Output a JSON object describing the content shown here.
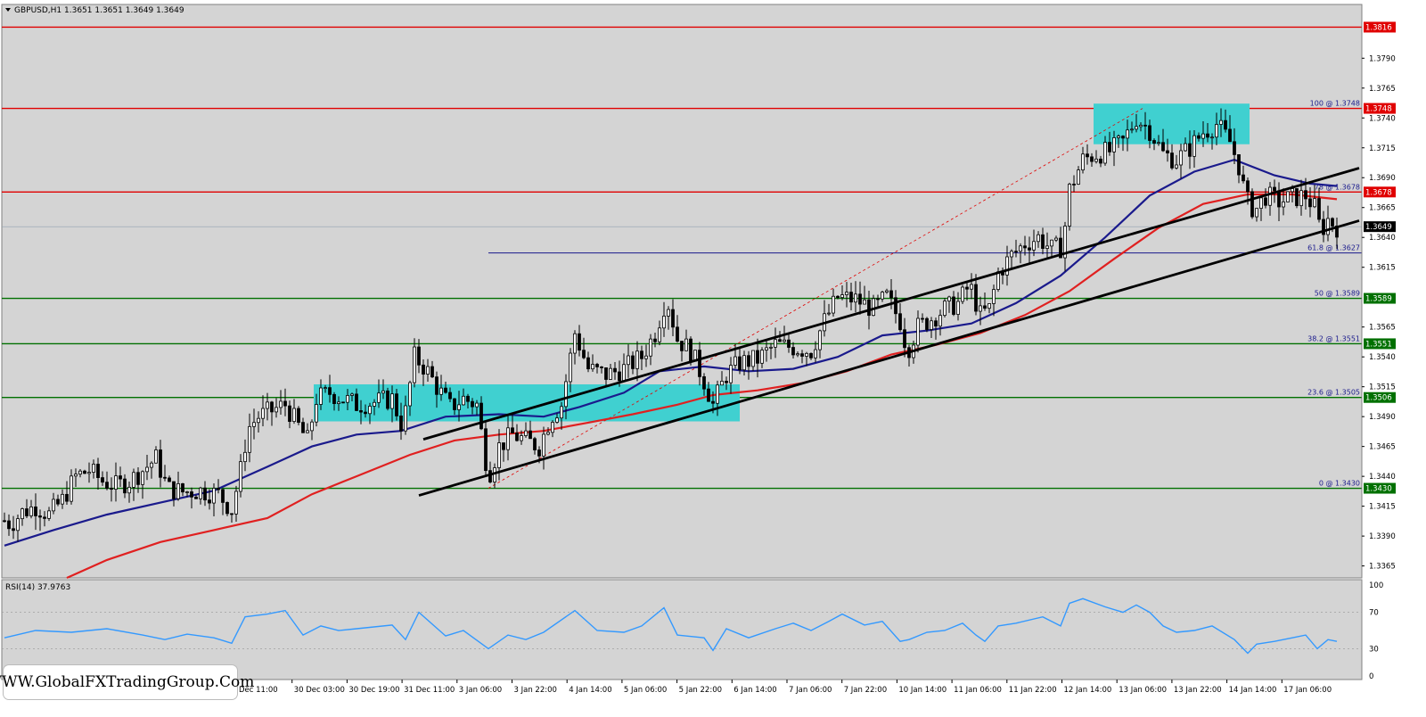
{
  "chart_header": "GBPUSD,H1  1.3651 1.3651 1.3649 1.3649",
  "rsi_header": "RSI(14) 37.9763",
  "watermark": "WWW.GlobalFXTradingGroup.Com",
  "colors": {
    "plot_bg": "#d4d4d4",
    "candle_up": "#000000",
    "candle_down": "#000000",
    "ma_fast": "#1a1a8c",
    "ma_slow": "#e02020",
    "resistance_line": "#e00000",
    "support_line": "#007000",
    "zone": "#40d0d0",
    "rsi": "#3399ff",
    "trendline": "#000000"
  },
  "chart_data": {
    "type": "candlestick",
    "symbol": "GBPUSD",
    "timeframe": "H1",
    "ohlc_current": {
      "open": 1.3651,
      "high": 1.3651,
      "low": 1.3649,
      "close": 1.3649
    },
    "ylim": [
      1.3355,
      1.3835
    ],
    "y_ticks": [
      "1.3790",
      "1.3765",
      "1.3740",
      "1.3715",
      "1.3690",
      "1.3665",
      "1.3640",
      "1.3615",
      "1.3565",
      "1.3540",
      "1.3515",
      "1.3490",
      "1.3465",
      "1.3440",
      "1.3415",
      "1.3390",
      "1.3365"
    ],
    "x_ticks": [
      "Dec 11:00",
      "30 Dec 03:00",
      "30 Dec 19:00",
      "31 Dec 11:00",
      "3 Jan 06:00",
      "3 Jan 22:00",
      "4 Jan 14:00",
      "5 Jan 06:00",
      "5 Jan 22:00",
      "6 Jan 14:00",
      "7 Jan 06:00",
      "7 Jan 22:00",
      "10 Jan 14:00",
      "11 Jan 06:00",
      "11 Jan 22:00",
      "12 Jan 14:00",
      "13 Jan 06:00",
      "13 Jan 22:00",
      "14 Jan 14:00",
      "17 Jan 06:00"
    ],
    "price_path": [
      [
        0,
        1.3405
      ],
      [
        12,
        1.34
      ],
      [
        25,
        1.341
      ],
      [
        40,
        1.3415
      ],
      [
        55,
        1.3408
      ],
      [
        70,
        1.342
      ],
      [
        85,
        1.344
      ],
      [
        100,
        1.3445
      ],
      [
        115,
        1.3436
      ],
      [
        130,
        1.3432
      ],
      [
        145,
        1.3436
      ],
      [
        160,
        1.3445
      ],
      [
        175,
        1.3455
      ],
      [
        188,
        1.343
      ],
      [
        205,
        1.3427
      ],
      [
        225,
        1.3428
      ],
      [
        245,
        1.3425
      ],
      [
        260,
        1.3412
      ],
      [
        270,
        1.3445
      ],
      [
        278,
        1.348
      ],
      [
        290,
        1.349
      ],
      [
        305,
        1.3495
      ],
      [
        320,
        1.35
      ],
      [
        335,
        1.3482
      ],
      [
        345,
        1.347
      ],
      [
        355,
        1.3505
      ],
      [
        370,
        1.351
      ],
      [
        385,
        1.3505
      ],
      [
        400,
        1.35
      ],
      [
        420,
        1.3502
      ],
      [
        440,
        1.3505
      ],
      [
        452,
        1.348
      ],
      [
        465,
        1.354
      ],
      [
        478,
        1.353
      ],
      [
        490,
        1.3515
      ],
      [
        505,
        1.3498
      ],
      [
        520,
        1.3505
      ],
      [
        535,
        1.35
      ],
      [
        548,
        1.344
      ],
      [
        560,
        1.3465
      ],
      [
        575,
        1.3475
      ],
      [
        590,
        1.347
      ],
      [
        605,
        1.3465
      ],
      [
        618,
        1.349
      ],
      [
        630,
        1.35
      ],
      [
        645,
        1.356
      ],
      [
        660,
        1.353
      ],
      [
        680,
        1.3525
      ],
      [
        700,
        1.353
      ],
      [
        720,
        1.354
      ],
      [
        735,
        1.356
      ],
      [
        748,
        1.359
      ],
      [
        760,
        1.3555
      ],
      [
        775,
        1.3545
      ],
      [
        790,
        1.352
      ],
      [
        800,
        1.35
      ],
      [
        815,
        1.3525
      ],
      [
        830,
        1.3535
      ],
      [
        850,
        1.3538
      ],
      [
        870,
        1.355
      ],
      [
        890,
        1.3548
      ],
      [
        910,
        1.3545
      ],
      [
        925,
        1.357
      ],
      [
        940,
        1.359
      ],
      [
        960,
        1.3588
      ],
      [
        980,
        1.358
      ],
      [
        995,
        1.359
      ],
      [
        1010,
        1.357
      ],
      [
        1018,
        1.3545
      ],
      [
        1030,
        1.3565
      ],
      [
        1045,
        1.3572
      ],
      [
        1060,
        1.358
      ],
      [
        1075,
        1.3585
      ],
      [
        1088,
        1.36
      ],
      [
        1100,
        1.3575
      ],
      [
        1110,
        1.358
      ],
      [
        1120,
        1.361
      ],
      [
        1135,
        1.3625
      ],
      [
        1150,
        1.3635
      ],
      [
        1165,
        1.364
      ],
      [
        1180,
        1.363
      ],
      [
        1192,
        1.3632
      ],
      [
        1200,
        1.368
      ],
      [
        1215,
        1.3705
      ],
      [
        1230,
        1.371
      ],
      [
        1245,
        1.3712
      ],
      [
        1260,
        1.372
      ],
      [
        1275,
        1.374
      ],
      [
        1290,
        1.373
      ],
      [
        1305,
        1.371
      ],
      [
        1320,
        1.3705
      ],
      [
        1335,
        1.3715
      ],
      [
        1350,
        1.3728
      ],
      [
        1365,
        1.3735
      ],
      [
        1380,
        1.372
      ],
      [
        1390,
        1.37
      ],
      [
        1398,
        1.3672
      ],
      [
        1408,
        1.3662
      ],
      [
        1420,
        1.3675
      ],
      [
        1435,
        1.367
      ],
      [
        1450,
        1.3673
      ],
      [
        1465,
        1.3675
      ],
      [
        1475,
        1.3665
      ],
      [
        1482,
        1.3645
      ],
      [
        1490,
        1.3655
      ],
      [
        1500,
        1.3649
      ]
    ],
    "series": [
      {
        "name": "",
        "kind": "moving_average",
        "color": "#1a1a8c",
        "points": [
          [
            5,
            1.3382
          ],
          [
            60,
            1.3395
          ],
          [
            120,
            1.3408
          ],
          [
            180,
            1.3418
          ],
          [
            240,
            1.3428
          ],
          [
            300,
            1.3448
          ],
          [
            350,
            1.3465
          ],
          [
            400,
            1.3475
          ],
          [
            450,
            1.3478
          ],
          [
            500,
            1.349
          ],
          [
            560,
            1.3492
          ],
          [
            610,
            1.349
          ],
          [
            650,
            1.3498
          ],
          [
            700,
            1.351
          ],
          [
            740,
            1.3528
          ],
          [
            790,
            1.3532
          ],
          [
            840,
            1.3528
          ],
          [
            890,
            1.353
          ],
          [
            940,
            1.354
          ],
          [
            990,
            1.3558
          ],
          [
            1040,
            1.3562
          ],
          [
            1090,
            1.3568
          ],
          [
            1140,
            1.3585
          ],
          [
            1190,
            1.3608
          ],
          [
            1240,
            1.364
          ],
          [
            1290,
            1.3675
          ],
          [
            1340,
            1.3695
          ],
          [
            1385,
            1.3705
          ],
          [
            1430,
            1.3692
          ],
          [
            1470,
            1.3685
          ],
          [
            1500,
            1.3683
          ]
        ]
      },
      {
        "name": "",
        "kind": "moving_average",
        "color": "#e02020",
        "points": [
          [
            75,
            1.3355
          ],
          [
            120,
            1.337
          ],
          [
            180,
            1.3385
          ],
          [
            240,
            1.3395
          ],
          [
            300,
            1.3405
          ],
          [
            350,
            1.3425
          ],
          [
            400,
            1.344
          ],
          [
            460,
            1.3458
          ],
          [
            510,
            1.347
          ],
          [
            560,
            1.3475
          ],
          [
            610,
            1.3478
          ],
          [
            660,
            1.3485
          ],
          [
            710,
            1.3492
          ],
          [
            760,
            1.35
          ],
          [
            800,
            1.3508
          ],
          [
            850,
            1.3512
          ],
          [
            900,
            1.3518
          ],
          [
            950,
            1.3528
          ],
          [
            1000,
            1.3542
          ],
          [
            1050,
            1.355
          ],
          [
            1100,
            1.356
          ],
          [
            1150,
            1.3575
          ],
          [
            1200,
            1.3595
          ],
          [
            1250,
            1.3622
          ],
          [
            1300,
            1.3648
          ],
          [
            1350,
            1.3668
          ],
          [
            1400,
            1.3676
          ],
          [
            1450,
            1.3676
          ],
          [
            1500,
            1.3672
          ]
        ]
      }
    ],
    "horizontal_levels": [
      {
        "price": 1.3816,
        "label": "1.3816",
        "color": "#e00000",
        "fib": ""
      },
      {
        "price": 1.3748,
        "label": "1.3748",
        "color": "#e00000",
        "fib": "100 @ 1.3748"
      },
      {
        "price": 1.3678,
        "label": "1.3678",
        "color": "#e00000",
        "fib": "78 @ 1.3678"
      },
      {
        "price": 1.3589,
        "label": "1.3589",
        "color": "#007000",
        "fib": "50 @ 1.3589"
      },
      {
        "price": 1.3551,
        "label": "1.3551",
        "color": "#007000",
        "fib": "38.2 @ 1.3551"
      },
      {
        "price": 1.3506,
        "label": "1.3506",
        "color": "#007000",
        "fib": "23.6 @ 1.3505"
      },
      {
        "price": 1.343,
        "label": "1.3430",
        "color": "#007000",
        "fib": "0 @ 1.3430"
      }
    ],
    "fib_618": {
      "price": 1.3627,
      "label": "61.8 @ 1.3627"
    },
    "current_price": {
      "price": 1.3649,
      "label": "1.3649"
    },
    "zones": [
      {
        "from_x": 352,
        "to_x": 830,
        "price_top": 1.3517,
        "price_bottom": 1.3486
      },
      {
        "from_x": 1227,
        "to_x": 1402,
        "price_top": 1.3752,
        "price_bottom": 1.3718
      }
    ],
    "trendlines": [
      {
        "x1": 470,
        "p1": 1.3424,
        "x2": 1525,
        "p2": 1.3654
      },
      {
        "x1": 475,
        "p1": 1.3471,
        "x2": 1525,
        "p2": 1.3698
      }
    ],
    "fib_dashed": {
      "x1": 548,
      "p1": 1.343,
      "x2": 1282,
      "p2": 1.3748
    },
    "rsi": {
      "name": "RSI(14)",
      "last": 37.9763,
      "ylim": [
        0,
        100
      ],
      "levels": [
        "100",
        "70",
        "30",
        "0"
      ],
      "points": [
        [
          5,
          42
        ],
        [
          40,
          50
        ],
        [
          80,
          48
        ],
        [
          120,
          52
        ],
        [
          160,
          45
        ],
        [
          185,
          40
        ],
        [
          210,
          46
        ],
        [
          240,
          42
        ],
        [
          260,
          36
        ],
        [
          275,
          65
        ],
        [
          300,
          68
        ],
        [
          320,
          72
        ],
        [
          340,
          45
        ],
        [
          360,
          55
        ],
        [
          380,
          50
        ],
        [
          400,
          52
        ],
        [
          440,
          56
        ],
        [
          455,
          40
        ],
        [
          470,
          70
        ],
        [
          500,
          44
        ],
        [
          520,
          50
        ],
        [
          548,
          30
        ],
        [
          570,
          45
        ],
        [
          590,
          40
        ],
        [
          610,
          48
        ],
        [
          645,
          72
        ],
        [
          670,
          50
        ],
        [
          700,
          48
        ],
        [
          720,
          55
        ],
        [
          745,
          75
        ],
        [
          760,
          45
        ],
        [
          790,
          42
        ],
        [
          800,
          28
        ],
        [
          815,
          52
        ],
        [
          840,
          42
        ],
        [
          870,
          52
        ],
        [
          890,
          58
        ],
        [
          910,
          50
        ],
        [
          930,
          60
        ],
        [
          945,
          68
        ],
        [
          970,
          56
        ],
        [
          990,
          60
        ],
        [
          1010,
          38
        ],
        [
          1020,
          40
        ],
        [
          1040,
          48
        ],
        [
          1060,
          50
        ],
        [
          1080,
          58
        ],
        [
          1095,
          45
        ],
        [
          1105,
          38
        ],
        [
          1120,
          55
        ],
        [
          1140,
          58
        ],
        [
          1170,
          65
        ],
        [
          1190,
          55
        ],
        [
          1200,
          80
        ],
        [
          1215,
          85
        ],
        [
          1240,
          76
        ],
        [
          1260,
          70
        ],
        [
          1275,
          78
        ],
        [
          1290,
          70
        ],
        [
          1305,
          55
        ],
        [
          1320,
          48
        ],
        [
          1340,
          50
        ],
        [
          1360,
          55
        ],
        [
          1385,
          40
        ],
        [
          1400,
          25
        ],
        [
          1410,
          35
        ],
        [
          1430,
          38
        ],
        [
          1450,
          42
        ],
        [
          1465,
          45
        ],
        [
          1478,
          30
        ],
        [
          1490,
          40
        ],
        [
          1500,
          38
        ]
      ]
    }
  }
}
